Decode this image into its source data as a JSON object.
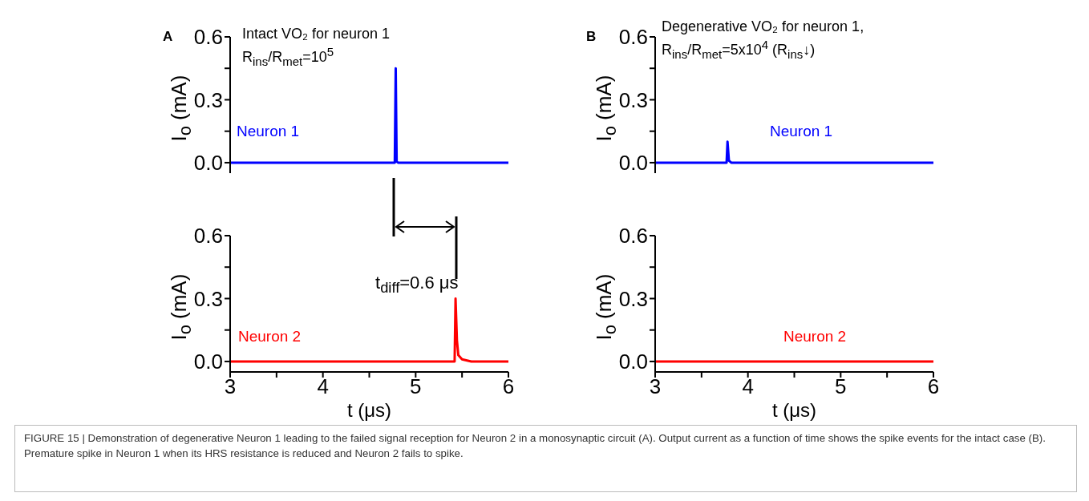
{
  "chart_data": [
    {
      "type": "line",
      "ylabel": "I$_{o}$ (mA)",
      "tick_labels": "y",
      "annotations": [
        "A",
        "Intact VO₂ for neuron 1",
        "R$_{ins}$/R$_{met}$=10$^{5}$"
      ],
      "series": [
        {
          "name": "Neuron 1",
          "color": "#0000ff",
          "x": [
            3,
            4.775,
            4.785,
            4.795,
            4.81,
            6
          ],
          "values": [
            0,
            0,
            0.45,
            0.005,
            0,
            0
          ]
        }
      ],
      "xlim": [
        3,
        6
      ],
      "ylim": [
        -0.05,
        0.6
      ],
      "yticks": [
        {
          "value": 0,
          "label": "0.0"
        },
        {
          "value": 0.15,
          "label": null
        },
        {
          "value": 0.3,
          "label": "0.3"
        },
        {
          "value": 0.45,
          "label": null
        },
        {
          "value": 0.6,
          "label": "0.6"
        }
      ]
    },
    {
      "type": "line",
      "ylabel": "I$_{o}$ (mA)",
      "xlabel": "t (μs)",
      "annotations": [
        "t$_{diff}$=0.6 μs"
      ],
      "series": [
        {
          "name": "Neuron 2",
          "color": "#ff0000",
          "x": [
            3,
            5.1,
            5.42,
            5.43,
            5.445,
            5.46,
            5.5,
            5.6,
            6
          ],
          "values": [
            0,
            0,
            0,
            0.3,
            0.1,
            0.03,
            0.01,
            0,
            0
          ]
        }
      ],
      "xlim": [
        3,
        6
      ],
      "xticks": [
        3,
        {
          "value": 3.5,
          "label": null
        },
        4,
        {
          "value": 4.5,
          "label": null
        },
        5,
        {
          "value": 5.5,
          "label": null
        },
        6
      ],
      "ylim": [
        -0.05,
        0.6
      ],
      "yticks": [
        {
          "value": 0,
          "label": "0.0"
        },
        {
          "value": 0.15,
          "label": null
        },
        {
          "value": 0.3,
          "label": "0.3"
        },
        {
          "value": 0.45,
          "label": null
        },
        {
          "value": 0.6,
          "label": "0.6"
        }
      ]
    },
    {
      "type": "line",
      "ylabel": "I$_{o}$ (mA)",
      "tick_labels": "y",
      "annotations": [
        "B",
        "Degenerative VO₂ for neuron 1,",
        "R$_{ins}$/R$_{met}$=5x10$^{4}$ (R$_{ins}$↓)"
      ],
      "series": [
        {
          "name": "Neuron 1",
          "color": "#0000ff",
          "x": [
            3,
            3.77,
            3.78,
            3.795,
            3.82,
            6
          ],
          "values": [
            0,
            0,
            0.1,
            0.01,
            0,
            0
          ]
        }
      ],
      "xlim": [
        3,
        6
      ],
      "ylim": [
        -0.05,
        0.6
      ],
      "yticks": [
        {
          "value": 0,
          "label": "0.0"
        },
        {
          "value": 0.15,
          "label": null
        },
        {
          "value": 0.3,
          "label": "0.3"
        },
        {
          "value": 0.45,
          "label": null
        },
        {
          "value": 0.6,
          "label": "0.6"
        }
      ]
    },
    {
      "type": "line",
      "ylabel": "I$_{o}$ (mA)",
      "xlabel": "t (μs)",
      "annotations": [
        "FIGURE 15 | Demonstration of degenerative Neuron 1 leading to the failed signal reception for Neuron 2 in a monosynaptic circuit (A). Output current as a function of time shows the spike events for the intact case (B). Premature spike in Neuron 1 when its HRS resistance is reduced and Neuron 2 fails to spike."
      ],
      "series": [
        {
          "name": "Neuron 2",
          "color": "#ff0000",
          "x": [
            3,
            6
          ],
          "values": [
            0,
            0
          ]
        }
      ],
      "xlim": [
        3,
        6
      ],
      "xticks": [
        3,
        {
          "value": 3.5,
          "label": null
        },
        4,
        {
          "value": 4.5,
          "label": null
        },
        5,
        {
          "value": 5.5,
          "label": null
        },
        6
      ],
      "ylim": [
        -0.05,
        0.6
      ],
      "yticks": [
        {
          "value": 0,
          "label": "0.0"
        },
        {
          "value": 0.15,
          "label": null
        },
        {
          "value": 0.3,
          "label": "0.3"
        },
        {
          "value": 0.45,
          "label": null
        },
        {
          "value": 0.6,
          "label": "0.6"
        }
      ]
    }
  ]
}
